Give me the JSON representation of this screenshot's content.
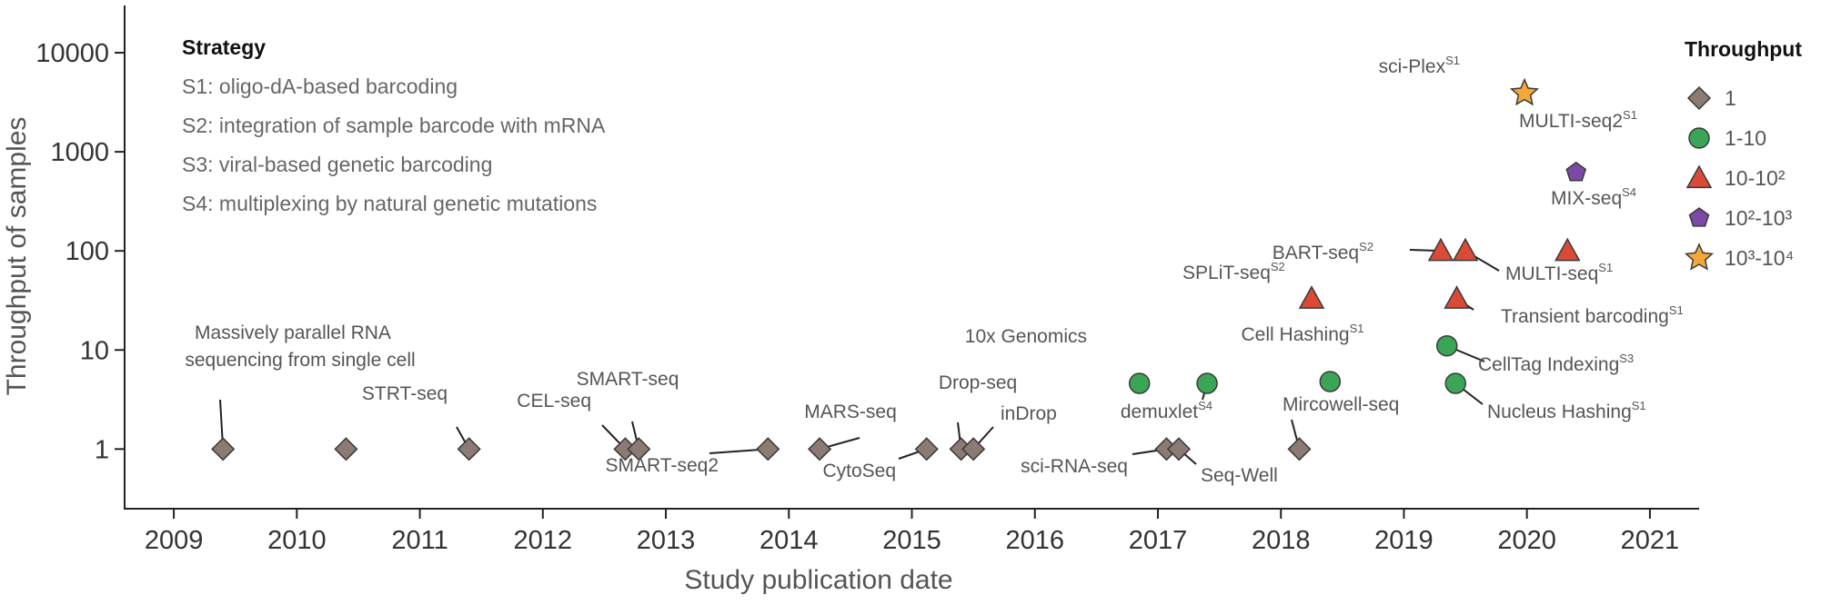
{
  "chart_data": {
    "type": "scatter",
    "xlabel": "Study publication date",
    "ylabel": "Throughput of samples",
    "xlim": [
      2008.6,
      2021.4
    ],
    "ylim": [
      0.25,
      30000
    ],
    "y_scale": "log",
    "x_ticks": [
      "2009",
      "2010",
      "2011",
      "2012",
      "2013",
      "2014",
      "2015",
      "2016",
      "2017",
      "2018",
      "2019",
      "2020",
      "2021"
    ],
    "y_ticks": [
      "1",
      "10",
      "100",
      "1000",
      "10000"
    ],
    "grid": false,
    "strategy": {
      "title": "Strategy",
      "items": [
        "S1: oligo-dA-based barcoding",
        "S2: integration of sample barcode with mRNA",
        "S3: viral-based genetic barcoding",
        "S4: multiplexing by natural genetic mutations"
      ]
    },
    "legend": {
      "title": "Throughput",
      "position": "right",
      "entries": [
        {
          "label": "1",
          "marker": "diamond",
          "color": "#8c7b74"
        },
        {
          "label": "1-10",
          "marker": "circle",
          "color": "#3aa655"
        },
        {
          "label": "10-10²",
          "marker": "triangle",
          "color": "#d94a37"
        },
        {
          "label": "10²-10³",
          "marker": "pentagon",
          "color": "#7a4aa6"
        },
        {
          "label": "10³-10⁴",
          "marker": "star",
          "color": "#f5a83a"
        }
      ]
    },
    "points": [
      {
        "label": "Massively parallel RNA",
        "label2": "sequencing from single cell",
        "sup": "",
        "x": 2009.4,
        "y": 1,
        "marker": "diamond"
      },
      {
        "label": "",
        "sup": "",
        "x": 2010.4,
        "y": 1,
        "marker": "diamond"
      },
      {
        "label": "STRT-seq",
        "sup": "",
        "x": 2011.4,
        "y": 1,
        "marker": "diamond"
      },
      {
        "label": "CEL-seq",
        "sup": "",
        "x": 2012.67,
        "y": 1,
        "marker": "diamond"
      },
      {
        "label": "SMART-seq",
        "sup": "",
        "x": 2012.78,
        "y": 1,
        "marker": "diamond"
      },
      {
        "label": "SMART-seq2",
        "sup": "",
        "x": 2013.83,
        "y": 1,
        "marker": "diamond"
      },
      {
        "label": "MARS-seq",
        "sup": "",
        "x": 2014.25,
        "y": 1,
        "marker": "diamond"
      },
      {
        "label": "CytoSeq",
        "sup": "",
        "x": 2015.12,
        "y": 1,
        "marker": "diamond"
      },
      {
        "label": "Drop-seq",
        "sup": "",
        "x": 2015.4,
        "y": 1,
        "marker": "diamond"
      },
      {
        "label": "inDrop",
        "sup": "",
        "x": 2015.5,
        "y": 1,
        "marker": "diamond"
      },
      {
        "label": "sci-RNA-seq",
        "sup": "",
        "x": 2017.07,
        "y": 1,
        "marker": "diamond"
      },
      {
        "label": "Seq-Well",
        "sup": "",
        "x": 2017.17,
        "y": 1,
        "marker": "diamond"
      },
      {
        "label": "Mircowell-seq",
        "sup": "",
        "x": 2018.15,
        "y": 1,
        "marker": "diamond"
      },
      {
        "label": "10x Genomics",
        "sup": "",
        "x": 2016.85,
        "y": 4.6,
        "marker": "circle"
      },
      {
        "label": "demuxlet",
        "sup": "S4",
        "x": 2017.4,
        "y": 4.6,
        "marker": "circle"
      },
      {
        "label": "Cell Hashing",
        "sup": "S1",
        "x": 2018.4,
        "y": 4.8,
        "marker": "circle"
      },
      {
        "label": "CellTag Indexing",
        "sup": "S3",
        "x": 2019.35,
        "y": 11,
        "marker": "circle"
      },
      {
        "label": "Nucleus Hashing",
        "sup": "S1",
        "x": 2019.42,
        "y": 4.6,
        "marker": "circle"
      },
      {
        "label": "SPLiT-seq",
        "sup": "S2",
        "x": 2018.25,
        "y": 33,
        "marker": "triangle"
      },
      {
        "label": "BART-seq",
        "sup": "S2",
        "x": 2019.3,
        "y": 100,
        "marker": "triangle"
      },
      {
        "label": "MULTI-seq",
        "sup": "S1",
        "x": 2019.5,
        "y": 100,
        "marker": "triangle"
      },
      {
        "label": "Transient barcoding",
        "sup": "S1",
        "x": 2019.43,
        "y": 33,
        "marker": "triangle"
      },
      {
        "label": "MIX-seq",
        "sup": "S4",
        "x": 2020.33,
        "y": 100,
        "marker": "triangle"
      },
      {
        "label": "MULTI-seq2",
        "sup": "S1",
        "x": 2020.4,
        "y": 620,
        "marker": "pentagon"
      },
      {
        "label": "sci-Plex",
        "sup": "S1",
        "x": 2019.98,
        "y": 3900,
        "marker": "star"
      }
    ]
  }
}
